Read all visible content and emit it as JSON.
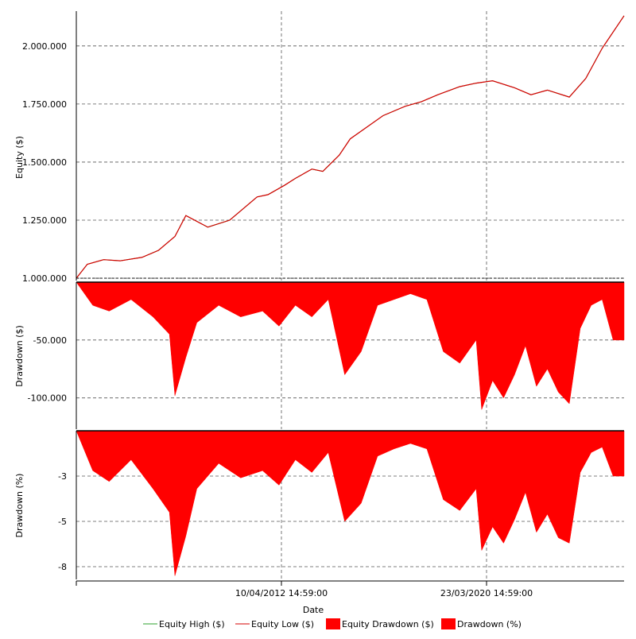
{
  "chart_data": [
    {
      "type": "line",
      "ylabel": "Equity ($)",
      "y_ticks": [
        "1.000.000",
        "1.250.000",
        "1.500.000",
        "1.750.000",
        "2.000.000"
      ],
      "y_tick_values": [
        1000000,
        1250000,
        1500000,
        1750000,
        2000000
      ],
      "ylim": [
        990000,
        2150000
      ],
      "grid": true,
      "series": [
        {
          "name": "Equity High ($)",
          "color": "#2ca02c"
        },
        {
          "name": "Equity Low ($)",
          "color": "#d40000"
        }
      ],
      "x": [
        0,
        2,
        5,
        8,
        12,
        15,
        18,
        20,
        24,
        28,
        30,
        33,
        35,
        38,
        40,
        43,
        45,
        48,
        50,
        53,
        56,
        60,
        63,
        66,
        70,
        73,
        76,
        80,
        83,
        86,
        90,
        93,
        96,
        100
      ],
      "values": [
        1000000,
        1060000,
        1080000,
        1075000,
        1090000,
        1120000,
        1180000,
        1270000,
        1220000,
        1250000,
        1290000,
        1350000,
        1360000,
        1400000,
        1430000,
        1470000,
        1460000,
        1530000,
        1600000,
        1650000,
        1700000,
        1740000,
        1760000,
        1790000,
        1825000,
        1840000,
        1850000,
        1820000,
        1790000,
        1810000,
        1780000,
        1860000,
        1990000,
        2130000
      ]
    },
    {
      "type": "area",
      "ylabel": "Drawdown ($)",
      "y_ticks": [
        "-50.000",
        "-100.000"
      ],
      "y_tick_values": [
        -50000,
        -100000
      ],
      "ylim": [
        -127000,
        0
      ],
      "grid": true,
      "series": [
        {
          "name": "Equity Drawdown ($)",
          "color": "#ff0000"
        }
      ],
      "x": [
        0,
        3,
        6,
        10,
        14,
        17,
        18,
        20,
        22,
        26,
        30,
        34,
        37,
        40,
        43,
        46,
        49,
        52,
        55,
        58,
        61,
        64,
        67,
        70,
        73,
        74,
        76,
        78,
        80,
        82,
        84,
        86,
        88,
        90,
        92,
        94,
        96,
        98,
        100
      ],
      "values": [
        0,
        -20000,
        -25000,
        -15000,
        -30000,
        -45000,
        -98000,
        -65000,
        -35000,
        -20000,
        -30000,
        -25000,
        -38000,
        -20000,
        -30000,
        -15000,
        -80000,
        -60000,
        -20000,
        -15000,
        -10000,
        -15000,
        -60000,
        -70000,
        -50000,
        -110000,
        -85000,
        -100000,
        -80000,
        -55000,
        -90000,
        -75000,
        -95000,
        -105000,
        -40000,
        -20000,
        -15000,
        -50000,
        -50000
      ]
    },
    {
      "type": "area",
      "ylabel": "Drawdown (%)",
      "y_ticks": [
        "-3",
        "-5",
        "-8"
      ],
      "y_tick_values": [
        -2.5,
        -5,
        -7.5
      ],
      "ylim": [
        -8.2,
        0
      ],
      "grid": true,
      "series": [
        {
          "name": "Drawdown (%)",
          "color": "#ff0000"
        }
      ],
      "x_ticks": [
        "10/04/2012 14:59:00",
        "23/03/2020 14:59:00"
      ],
      "xlabel": "Date",
      "x": [
        0,
        3,
        6,
        10,
        14,
        17,
        18,
        20,
        22,
        26,
        30,
        34,
        37,
        40,
        43,
        46,
        49,
        52,
        55,
        58,
        61,
        64,
        67,
        70,
        73,
        74,
        76,
        78,
        80,
        82,
        84,
        86,
        88,
        90,
        92,
        94,
        96,
        98,
        100
      ],
      "values": [
        0,
        -2.2,
        -2.8,
        -1.6,
        -3.2,
        -4.5,
        -8.0,
        -5.8,
        -3.2,
        -1.8,
        -2.6,
        -2.2,
        -3.0,
        -1.6,
        -2.3,
        -1.2,
        -5.0,
        -4.0,
        -1.4,
        -1.0,
        -0.7,
        -1.0,
        -3.8,
        -4.4,
        -3.2,
        -6.6,
        -5.3,
        -6.2,
        -4.9,
        -3.4,
        -5.6,
        -4.6,
        -5.9,
        -6.2,
        -2.3,
        -1.2,
        -0.9,
        -2.5,
        -2.5
      ]
    }
  ],
  "legend": {
    "items": [
      {
        "label": "Equity High ($)",
        "kind": "line",
        "color": "#2ca02c"
      },
      {
        "label": "Equity Low ($)",
        "kind": "line",
        "color": "#d40000"
      },
      {
        "label": "Equity Drawdown ($)",
        "kind": "box",
        "color": "#ff0000"
      },
      {
        "label": "Drawdown (%)",
        "kind": "box",
        "color": "#ff0000"
      }
    ]
  },
  "x_axis": {
    "label": "Date",
    "ticks": [
      "10/04/2012 14:59:00",
      "23/03/2020 14:59:00"
    ]
  }
}
